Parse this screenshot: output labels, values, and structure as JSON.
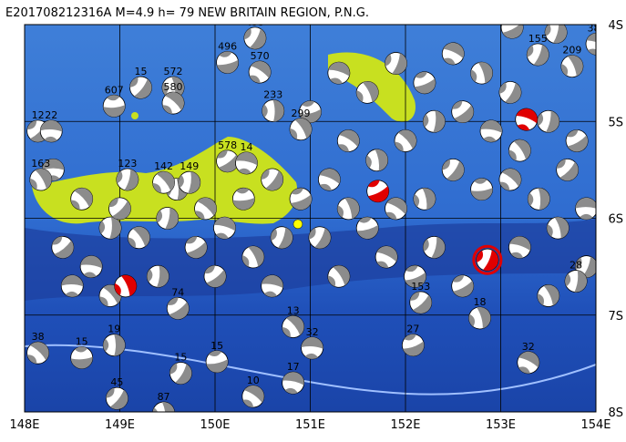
{
  "title": "E201708212316A  M=4.9  h= 79  NEW BRITAIN REGION, P.N.G.",
  "lon_labels": [
    "148E",
    "149E",
    "150E",
    "151E",
    "152E",
    "153E",
    "154E"
  ],
  "lat_labels": [
    "4S",
    "5S",
    "6S",
    "7S",
    "8S"
  ],
  "lon_range": [
    148,
    154
  ],
  "lat_range": [
    4,
    8
  ],
  "labeled_events": [
    {
      "lon": 150.42,
      "lat": 4.14,
      "depth": 455
    },
    {
      "lon": 150.13,
      "lat": 4.39,
      "depth": 496
    },
    {
      "lon": 150.47,
      "lat": 4.49,
      "depth": 570
    },
    {
      "lon": 149.56,
      "lat": 4.65,
      "depth": 572
    },
    {
      "lon": 149.22,
      "lat": 4.65,
      "depth": 15
    },
    {
      "lon": 148.94,
      "lat": 4.84,
      "depth": 607
    },
    {
      "lon": 149.56,
      "lat": 4.81,
      "depth": 580
    },
    {
      "lon": 150.61,
      "lat": 4.89,
      "depth": 233
    },
    {
      "lon": 148.14,
      "lat": 5.1,
      "depth": 12
    },
    {
      "lon": 148.28,
      "lat": 5.1,
      "depth": 22
    },
    {
      "lon": 149.46,
      "lat": 5.63,
      "depth": 142
    },
    {
      "lon": 149.73,
      "lat": 5.63,
      "depth": 149
    },
    {
      "lon": 150.13,
      "lat": 5.41,
      "depth": 578
    },
    {
      "lon": 150.33,
      "lat": 5.43,
      "depth": 14
    },
    {
      "lon": 150.9,
      "lat": 5.08,
      "depth": 299
    },
    {
      "lon": 153.58,
      "lat": 4.08,
      "depth": 12
    },
    {
      "lon": 153.12,
      "lat": 4.03,
      "depth": 32
    },
    {
      "lon": 154.01,
      "lat": 4.2,
      "depth": 383
    },
    {
      "lon": 153.75,
      "lat": 4.43,
      "depth": 209
    },
    {
      "lon": 153.39,
      "lat": 4.31,
      "depth": 155
    },
    {
      "lon": 152.08,
      "lat": 7.31,
      "depth": 27
    },
    {
      "lon": 153.29,
      "lat": 7.49,
      "depth": 32
    },
    {
      "lon": 152.78,
      "lat": 7.03,
      "depth": 18
    },
    {
      "lon": 149.64,
      "lat": 7.6,
      "depth": 15
    },
    {
      "lon": 150.02,
      "lat": 7.48,
      "depth": 15
    },
    {
      "lon": 150.4,
      "lat": 7.84,
      "depth": 10
    },
    {
      "lon": 149.46,
      "lat": 8.01,
      "depth": 87
    },
    {
      "lon": 148.97,
      "lat": 7.86,
      "depth": 45
    },
    {
      "lon": 148.6,
      "lat": 7.44,
      "depth": 15
    },
    {
      "lon": 148.14,
      "lat": 7.39,
      "depth": 38
    },
    {
      "lon": 148.94,
      "lat": 7.31,
      "depth": 19
    },
    {
      "lon": 152.16,
      "lat": 6.87,
      "depth": 153
    },
    {
      "lon": 151.02,
      "lat": 7.34,
      "depth": 32
    },
    {
      "lon": 150.82,
      "lat": 7.12,
      "depth": 13
    },
    {
      "lon": 153.79,
      "lat": 6.65,
      "depth": 28
    },
    {
      "lon": 149.61,
      "lat": 6.93,
      "depth": 74
    },
    {
      "lon": 150.82,
      "lat": 7.7,
      "depth": 17
    },
    {
      "lon": 148.17,
      "lat": 5.6,
      "depth": 163
    },
    {
      "lon": 149.08,
      "lat": 5.6,
      "depth": 123
    }
  ],
  "events": [
    {
      "lon": 148.3,
      "lat": 5.5
    },
    {
      "lon": 148.6,
      "lat": 5.8
    },
    {
      "lon": 148.9,
      "lat": 6.1
    },
    {
      "lon": 148.4,
      "lat": 6.3
    },
    {
      "lon": 148.7,
      "lat": 6.5
    },
    {
      "lon": 149.2,
      "lat": 6.2
    },
    {
      "lon": 149.5,
      "lat": 6.0
    },
    {
      "lon": 149.8,
      "lat": 6.3
    },
    {
      "lon": 150.1,
      "lat": 6.1
    },
    {
      "lon": 150.4,
      "lat": 6.4
    },
    {
      "lon": 150.7,
      "lat": 6.2
    },
    {
      "lon": 150.9,
      "lat": 5.8
    },
    {
      "lon": 151.2,
      "lat": 5.6
    },
    {
      "lon": 151.4,
      "lat": 5.9
    },
    {
      "lon": 151.1,
      "lat": 6.2
    },
    {
      "lon": 151.6,
      "lat": 6.1
    },
    {
      "lon": 151.9,
      "lat": 5.9
    },
    {
      "lon": 152.2,
      "lat": 5.8
    },
    {
      "lon": 152.5,
      "lat": 5.5
    },
    {
      "lon": 152.8,
      "lat": 5.7
    },
    {
      "lon": 153.1,
      "lat": 5.6
    },
    {
      "lon": 153.4,
      "lat": 5.8
    },
    {
      "lon": 153.7,
      "lat": 5.5
    },
    {
      "lon": 153.9,
      "lat": 5.9
    },
    {
      "lon": 152.0,
      "lat": 5.2
    },
    {
      "lon": 152.3,
      "lat": 5.0
    },
    {
      "lon": 152.6,
      "lat": 4.9
    },
    {
      "lon": 152.9,
      "lat": 5.1
    },
    {
      "lon": 153.2,
      "lat": 5.3
    },
    {
      "lon": 153.5,
      "lat": 5.0
    },
    {
      "lon": 153.8,
      "lat": 5.2
    },
    {
      "lon": 151.3,
      "lat": 4.5
    },
    {
      "lon": 151.6,
      "lat": 4.7
    },
    {
      "lon": 151.9,
      "lat": 4.4
    },
    {
      "lon": 152.2,
      "lat": 4.6
    },
    {
      "lon": 152.5,
      "lat": 4.3
    },
    {
      "lon": 152.8,
      "lat": 4.5
    },
    {
      "lon": 153.1,
      "lat": 4.7
    },
    {
      "lon": 151.0,
      "lat": 4.9
    },
    {
      "lon": 151.4,
      "lat": 5.2
    },
    {
      "lon": 151.7,
      "lat": 5.4
    },
    {
      "lon": 150.6,
      "lat": 5.6
    },
    {
      "lon": 150.3,
      "lat": 5.8
    },
    {
      "lon": 149.9,
      "lat": 5.9
    },
    {
      "lon": 149.6,
      "lat": 5.7
    },
    {
      "lon": 149.0,
      "lat": 5.9
    },
    {
      "lon": 148.5,
      "lat": 6.7
    },
    {
      "lon": 148.9,
      "lat": 6.8
    },
    {
      "lon": 149.4,
      "lat": 6.6
    },
    {
      "lon": 150.0,
      "lat": 6.6
    },
    {
      "lon": 150.6,
      "lat": 6.7
    },
    {
      "lon": 151.3,
      "lat": 6.6
    },
    {
      "lon": 152.3,
      "lat": 6.3
    },
    {
      "lon": 152.6,
      "lat": 6.7
    },
    {
      "lon": 153.2,
      "lat": 6.3
    },
    {
      "lon": 153.5,
      "lat": 6.8
    },
    {
      "lon": 153.9,
      "lat": 6.5
    },
    {
      "lon": 152.1,
      "lat": 6.6
    },
    {
      "lon": 151.8,
      "lat": 6.4
    },
    {
      "lon": 153.6,
      "lat": 6.1
    }
  ],
  "highlighted_events": [
    {
      "lon": 151.71,
      "lat": 5.72,
      "color": "#e00000"
    },
    {
      "lon": 153.27,
      "lat": 4.98,
      "color": "#e00000"
    },
    {
      "lon": 149.06,
      "lat": 6.7,
      "color": "#e00000"
    },
    {
      "lon": 152.86,
      "lat": 6.43,
      "color": "#e00000",
      "main": true
    }
  ],
  "marker": {
    "lon": 150.87,
    "lat": 6.06,
    "color": "#ffff00"
  }
}
